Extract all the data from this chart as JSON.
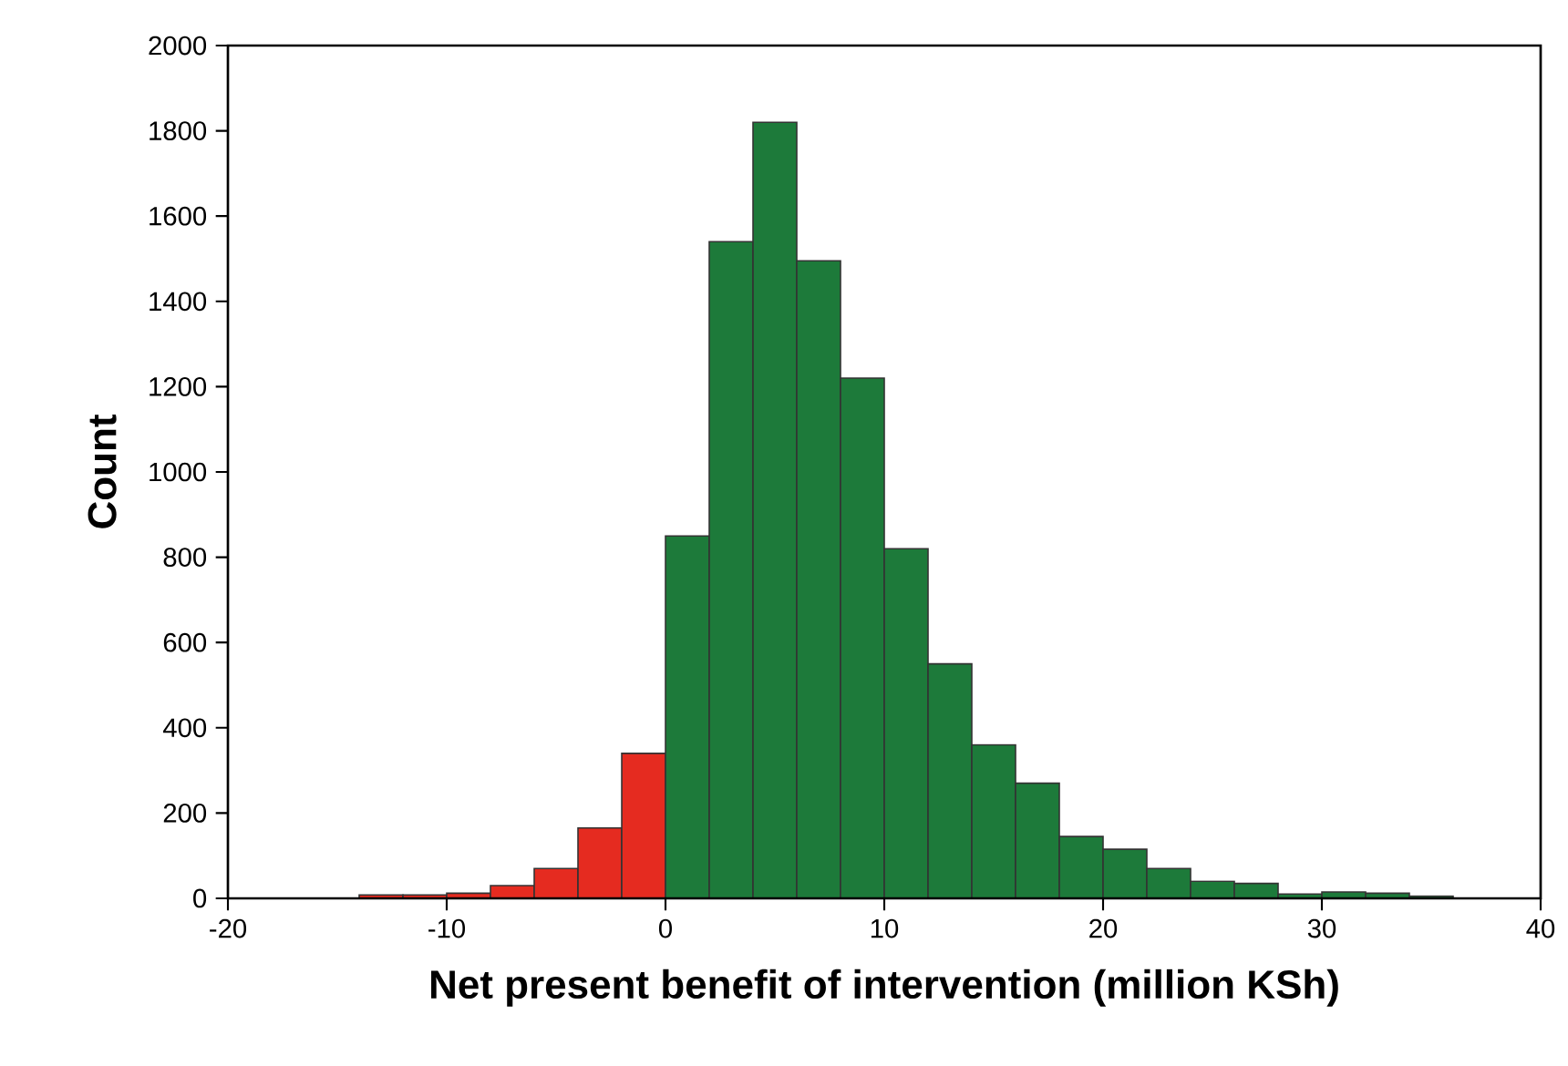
{
  "chart_data": {
    "type": "histogram",
    "xlabel": "Net present benefit of intervention (million KSh)",
    "ylabel": "Count",
    "bins": [
      -14,
      -12,
      -10,
      -8,
      -6,
      -4,
      -2,
      0,
      2,
      4,
      6,
      8,
      10,
      12,
      14,
      16,
      18,
      20,
      22,
      24,
      26,
      28,
      30,
      32,
      34,
      36
    ],
    "values": [
      8,
      8,
      12,
      30,
      70,
      165,
      340,
      850,
      1540,
      1820,
      1495,
      1220,
      820,
      550,
      360,
      270,
      145,
      115,
      70,
      40,
      35,
      10,
      15,
      12,
      5
    ],
    "colors": [
      "#e52b20",
      "#e52b20",
      "#e52b20",
      "#e52b20",
      "#e52b20",
      "#e52b20",
      "#e52b20",
      "#1d7a3a",
      "#1d7a3a",
      "#1d7a3a",
      "#1d7a3a",
      "#1d7a3a",
      "#1d7a3a",
      "#1d7a3a",
      "#1d7a3a",
      "#1d7a3a",
      "#1d7a3a",
      "#1d7a3a",
      "#1d7a3a",
      "#1d7a3a",
      "#1d7a3a",
      "#1d7a3a",
      "#1d7a3a",
      "#1d7a3a",
      "#1d7a3a"
    ],
    "xlim": [
      -20,
      40
    ],
    "xticks": [
      -20,
      -10,
      0,
      10,
      20,
      30,
      40
    ],
    "ylim": [
      0,
      2000
    ],
    "yticks": [
      0,
      200,
      400,
      600,
      800,
      1000,
      1200,
      1400,
      1600,
      1800,
      2000
    ]
  }
}
